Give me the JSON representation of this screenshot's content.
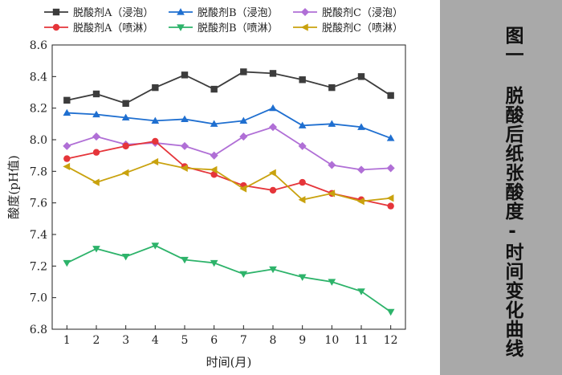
{
  "sidebar": {
    "title": "图一 脱酸后纸张酸度-时间变化曲线"
  },
  "chart_data": {
    "type": "line",
    "title": "",
    "xlabel": "时间(月)",
    "ylabel": "酸度(pH值)",
    "xlim": [
      0.5,
      12.5
    ],
    "ylim": [
      6.8,
      8.6
    ],
    "x": [
      1,
      2,
      3,
      4,
      5,
      6,
      7,
      8,
      9,
      10,
      11,
      12
    ],
    "x_ticks": [
      "1",
      "2",
      "3",
      "4",
      "5",
      "6",
      "7",
      "8",
      "9",
      "10",
      "11",
      "12"
    ],
    "y_ticks": [
      "6.8",
      "7.0",
      "7.2",
      "7.4",
      "7.6",
      "7.8",
      "8.0",
      "8.2",
      "8.4",
      "8.6"
    ],
    "y_tick_values": [
      6.8,
      7.0,
      7.2,
      7.4,
      7.6,
      7.8,
      8.0,
      8.2,
      8.4,
      8.6
    ],
    "grid": false,
    "legend_position": "top",
    "series": [
      {
        "name": "脱酸剂A（浸泡）",
        "color": "#3c3c3c",
        "marker": "square",
        "values": [
          8.25,
          8.29,
          8.23,
          8.33,
          8.41,
          8.32,
          8.43,
          8.42,
          8.38,
          8.33,
          8.4,
          8.28
        ]
      },
      {
        "name": "脱酸剂B（浸泡）",
        "color": "#1f6fd0",
        "marker": "triangle-up",
        "values": [
          8.17,
          8.16,
          8.14,
          8.12,
          8.13,
          8.1,
          8.12,
          8.2,
          8.09,
          8.1,
          8.08,
          8.01
        ]
      },
      {
        "name": "脱酸剂C（浸泡）",
        "color": "#b06fd6",
        "marker": "diamond",
        "values": [
          7.96,
          8.02,
          7.97,
          7.98,
          7.96,
          7.9,
          8.02,
          8.08,
          7.96,
          7.84,
          7.81,
          7.82
        ]
      },
      {
        "name": "脱酸剂A（喷淋）",
        "color": "#e5353a",
        "marker": "circle",
        "values": [
          7.88,
          7.92,
          7.96,
          7.99,
          7.83,
          7.78,
          7.71,
          7.68,
          7.73,
          7.66,
          7.62,
          7.58
        ]
      },
      {
        "name": "脱酸剂B（喷淋）",
        "color": "#2db36a",
        "marker": "triangle-down",
        "values": [
          7.22,
          7.31,
          7.26,
          7.33,
          7.24,
          7.22,
          7.15,
          7.18,
          7.13,
          7.1,
          7.04,
          6.91
        ]
      },
      {
        "name": "脱酸剂C（喷淋）",
        "color": "#c9a20e",
        "marker": "triangle-left",
        "values": [
          7.83,
          7.73,
          7.79,
          7.86,
          7.82,
          7.81,
          7.69,
          7.79,
          7.62,
          7.66,
          7.61,
          7.63
        ]
      }
    ]
  }
}
